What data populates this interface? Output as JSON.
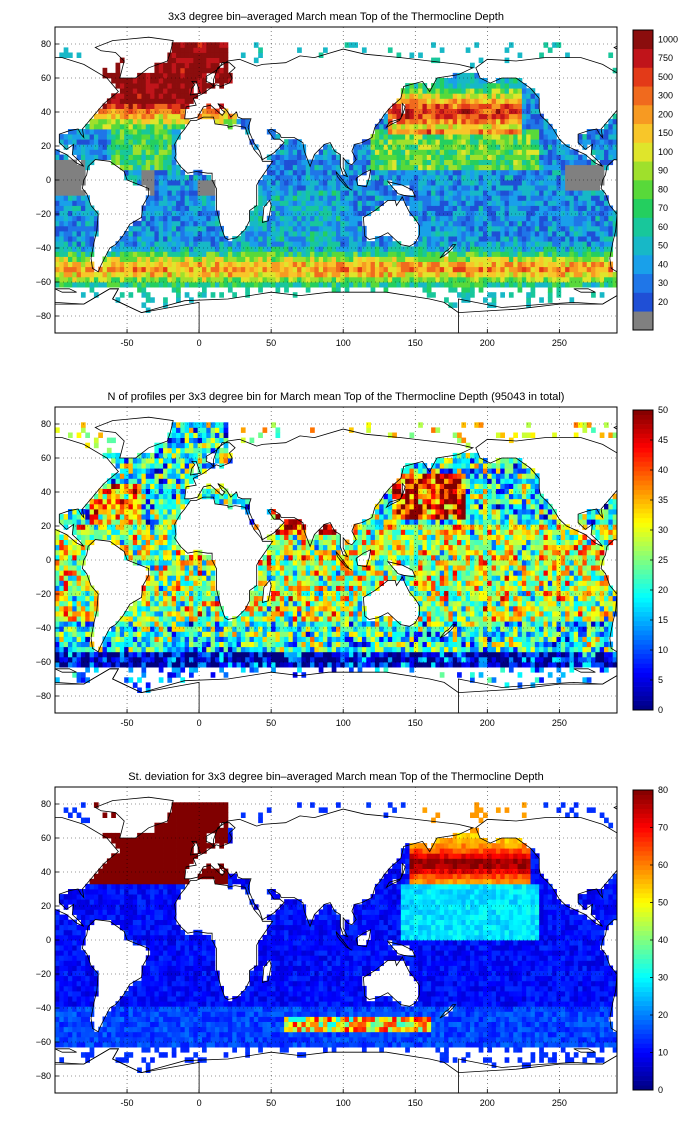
{
  "chart_data": [
    {
      "type": "heatmap",
      "title": "3x3 degree bin–averaged March mean Top of the Thermocline Depth",
      "x_ticks": [
        "-50",
        "0",
        "50",
        "100",
        "150",
        "200",
        "250"
      ],
      "y_ticks": [
        "80",
        "60",
        "40",
        "20",
        "0",
        "−20",
        "−40",
        "−60",
        "−80"
      ],
      "xlim": [
        -100,
        290
      ],
      "ylim": [
        -90,
        90
      ],
      "grid": true,
      "colorbar": {
        "scale": "categorical",
        "labels": [
          "20",
          "30",
          "40",
          "50",
          "60",
          "70",
          "80",
          "90",
          "100",
          "150",
          "200",
          "300",
          "500",
          "750",
          "1000"
        ],
        "colors": [
          "#808080",
          "#1f4fd6",
          "#1f76e8",
          "#19a0ea",
          "#17b8c7",
          "#18c79b",
          "#24cf5f",
          "#58d93a",
          "#9fe02c",
          "#dfe52b",
          "#f8c629",
          "#f79a22",
          "#f06a1e",
          "#e33a18",
          "#c0141a",
          "#8b0d0d"
        ]
      }
    },
    {
      "type": "heatmap",
      "title": "N of profiles per 3x3 degree bin for March mean Top of the Thermocline Depth  (95043 in total)",
      "x_ticks": [
        "-50",
        "0",
        "50",
        "100",
        "150",
        "200",
        "250"
      ],
      "y_ticks": [
        "80",
        "60",
        "40",
        "20",
        "0",
        "−20",
        "−40",
        "−60",
        "−80"
      ],
      "xlim": [
        -100,
        290
      ],
      "ylim": [
        -90,
        90
      ],
      "grid": true,
      "colorbar": {
        "scale": "linear",
        "range": [
          0,
          50
        ],
        "ticks": [
          "0",
          "5",
          "10",
          "15",
          "20",
          "25",
          "30",
          "35",
          "40",
          "45",
          "50"
        ],
        "colormap": "jet"
      }
    },
    {
      "type": "heatmap",
      "title": "St. deviation for 3x3 degree bin–averaged March mean Top of the Thermocline Depth",
      "x_ticks": [
        "-50",
        "0",
        "50",
        "100",
        "150",
        "200",
        "250"
      ],
      "y_ticks": [
        "80",
        "60",
        "40",
        "20",
        "0",
        "−20",
        "−40",
        "−60",
        "−80"
      ],
      "xlim": [
        -100,
        290
      ],
      "ylim": [
        -90,
        90
      ],
      "grid": true,
      "colorbar": {
        "scale": "linear",
        "range": [
          0,
          80
        ],
        "ticks": [
          "0",
          "10",
          "20",
          "30",
          "40",
          "50",
          "60",
          "70",
          "80"
        ],
        "colormap": "jet"
      }
    }
  ]
}
